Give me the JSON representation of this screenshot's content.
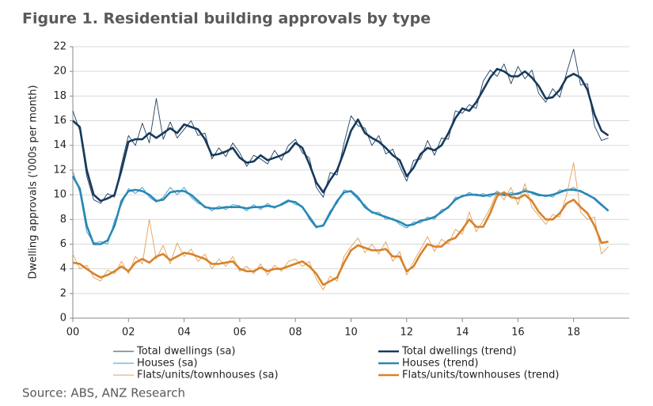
{
  "chart_data": {
    "type": "line",
    "title": "Figure 1. Residential building approvals by type",
    "y_label": "Dwelling approvals ('000s per month)",
    "source": "Source: ABS, ANZ Research",
    "x": [
      2000,
      2000.25,
      2000.5,
      2000.75,
      2001,
      2001.25,
      2001.5,
      2001.75,
      2002,
      2002.25,
      2002.5,
      2002.75,
      2003,
      2003.25,
      2003.5,
      2003.75,
      2004,
      2004.25,
      2004.5,
      2004.75,
      2005,
      2005.25,
      2005.5,
      2005.75,
      2006,
      2006.25,
      2006.5,
      2006.75,
      2007,
      2007.25,
      2007.5,
      2007.75,
      2008,
      2008.25,
      2008.5,
      2008.75,
      2009,
      2009.25,
      2009.5,
      2009.75,
      2010,
      2010.25,
      2010.5,
      2010.75,
      2011,
      2011.25,
      2011.5,
      2011.75,
      2012,
      2012.25,
      2012.5,
      2012.75,
      2013,
      2013.25,
      2013.5,
      2013.75,
      2014,
      2014.25,
      2014.5,
      2014.75,
      2015,
      2015.25,
      2015.5,
      2015.75,
      2016,
      2016.25,
      2016.5,
      2016.75,
      2017,
      2017.25,
      2017.5,
      2017.75,
      2018,
      2018.25,
      2018.5,
      2018.75,
      2019,
      2019.25
    ],
    "xlim": [
      2000,
      2020
    ],
    "xticks": [
      {
        "value": 2000,
        "label": "00"
      },
      {
        "value": 2002,
        "label": "02"
      },
      {
        "value": 2004,
        "label": "04"
      },
      {
        "value": 2006,
        "label": "06"
      },
      {
        "value": 2008,
        "label": "08"
      },
      {
        "value": 2010,
        "label": "10"
      },
      {
        "value": 2012,
        "label": "12"
      },
      {
        "value": 2014,
        "label": "14"
      },
      {
        "value": 2016,
        "label": "16"
      },
      {
        "value": 2018,
        "label": "18"
      }
    ],
    "ylim": [
      0,
      22
    ],
    "yticks": [
      0,
      2,
      4,
      6,
      8,
      10,
      12,
      14,
      16,
      18,
      20,
      22
    ],
    "grid": true,
    "series": [
      {
        "name": "Total dwellings (sa)",
        "color": "#1f3f60",
        "values": [
          16.8,
          15.2,
          11.5,
          9.6,
          9.3,
          10.1,
          9.8,
          12.5,
          14.8,
          14.0,
          15.8,
          14.2,
          17.8,
          14.5,
          15.9,
          14.6,
          15.3,
          16.0,
          14.8,
          15.0,
          12.9,
          13.8,
          13.1,
          14.2,
          13.4,
          12.3,
          13.2,
          12.9,
          12.5,
          13.6,
          12.8,
          14.0,
          14.5,
          13.4,
          13.0,
          10.6,
          9.8,
          11.8,
          11.6,
          14.2,
          16.4,
          15.6,
          15.4,
          14.0,
          14.8,
          13.3,
          13.7,
          12.3,
          11.1,
          12.8,
          12.9,
          14.4,
          13.2,
          14.6,
          14.5,
          16.8,
          16.6,
          17.3,
          17.0,
          19.2,
          20.1,
          19.6,
          20.6,
          19.0,
          20.4,
          19.4,
          20.1,
          18.2,
          17.5,
          18.6,
          17.9,
          19.9,
          21.8,
          18.9,
          19.0,
          15.6,
          14.4,
          14.6
        ]
      },
      {
        "name": "Total dwellings (trend)",
        "color": "#163a5c",
        "values": [
          16.0,
          15.5,
          12.0,
          10.0,
          9.5,
          9.7,
          10.0,
          12.0,
          14.3,
          14.5,
          14.5,
          15.0,
          14.6,
          15.0,
          15.4,
          15.0,
          15.7,
          15.5,
          15.3,
          14.5,
          13.2,
          13.3,
          13.5,
          13.8,
          13.0,
          12.6,
          12.7,
          13.2,
          12.8,
          13.0,
          13.2,
          13.5,
          14.2,
          13.8,
          12.5,
          11.0,
          10.2,
          11.2,
          12.0,
          13.5,
          15.2,
          16.1,
          15.0,
          14.6,
          14.3,
          13.8,
          13.2,
          12.8,
          11.5,
          12.2,
          13.3,
          13.8,
          13.6,
          14.0,
          15.0,
          16.2,
          17.0,
          16.8,
          17.5,
          18.5,
          19.5,
          20.2,
          20.0,
          19.6,
          19.6,
          20.0,
          19.5,
          18.8,
          17.8,
          17.9,
          18.5,
          19.5,
          19.8,
          19.5,
          18.5,
          16.5,
          15.2,
          14.8
        ]
      },
      {
        "name": "Houses (sa)",
        "color": "#3a9bc6",
        "values": [
          11.9,
          10.2,
          7.0,
          6.1,
          6.2,
          6.0,
          7.9,
          9.2,
          10.5,
          10.1,
          10.6,
          9.8,
          9.4,
          9.8,
          10.6,
          10.0,
          10.6,
          9.8,
          9.3,
          9.1,
          8.7,
          9.1,
          8.8,
          9.2,
          9.1,
          8.7,
          9.2,
          8.8,
          9.3,
          8.9,
          9.3,
          9.6,
          9.2,
          9.1,
          8.0,
          7.3,
          7.6,
          8.7,
          9.3,
          10.4,
          10.2,
          9.6,
          9.2,
          8.5,
          8.6,
          8.0,
          8.1,
          7.6,
          7.3,
          7.8,
          7.7,
          8.2,
          8.0,
          8.8,
          8.9,
          9.8,
          9.8,
          10.2,
          9.9,
          10.1,
          9.8,
          10.3,
          9.9,
          10.2,
          10.0,
          10.5,
          10.1,
          9.9,
          10.0,
          9.8,
          10.4,
          10.3,
          10.6,
          10.2,
          10.1,
          9.6,
          9.1,
          8.7
        ]
      },
      {
        "name": "Houses (trend)",
        "color": "#2a88b5",
        "values": [
          11.5,
          10.5,
          7.5,
          6.0,
          6.0,
          6.3,
          7.5,
          9.5,
          10.3,
          10.4,
          10.3,
          10.0,
          9.5,
          9.6,
          10.2,
          10.3,
          10.3,
          10.0,
          9.5,
          9.0,
          8.9,
          8.9,
          9.0,
          9.0,
          9.0,
          8.9,
          9.0,
          9.0,
          9.1,
          9.0,
          9.2,
          9.5,
          9.4,
          9.0,
          8.2,
          7.4,
          7.5,
          8.5,
          9.5,
          10.2,
          10.3,
          9.8,
          9.0,
          8.6,
          8.4,
          8.2,
          8.0,
          7.8,
          7.5,
          7.6,
          7.9,
          8.0,
          8.2,
          8.6,
          9.0,
          9.6,
          9.9,
          10.0,
          10.0,
          9.9,
          10.0,
          10.1,
          10.0,
          10.0,
          10.1,
          10.3,
          10.2,
          10.0,
          9.9,
          10.0,
          10.2,
          10.4,
          10.4,
          10.3,
          10.0,
          9.7,
          9.2,
          8.7
        ]
      },
      {
        "name": "Flats/units/townhouses (sa)",
        "color": "#e2a05a",
        "values": [
          5.2,
          4.0,
          4.3,
          3.3,
          3.0,
          3.9,
          3.6,
          4.6,
          3.6,
          5.0,
          4.4,
          8.0,
          4.8,
          5.9,
          4.4,
          6.1,
          5.0,
          5.6,
          4.6,
          5.2,
          4.0,
          4.8,
          4.2,
          5.0,
          3.8,
          4.2,
          3.6,
          4.4,
          3.5,
          4.3,
          3.8,
          4.6,
          4.8,
          4.2,
          4.6,
          3.2,
          2.3,
          3.4,
          3.0,
          5.0,
          5.8,
          6.5,
          5.3,
          6.0,
          5.2,
          6.2,
          4.6,
          5.4,
          3.5,
          4.6,
          5.6,
          6.6,
          5.4,
          6.4,
          6.0,
          7.2,
          6.8,
          8.6,
          7.0,
          7.9,
          8.9,
          10.3,
          9.6,
          10.6,
          9.2,
          10.9,
          9.0,
          8.3,
          7.6,
          8.4,
          8.2,
          10.0,
          12.6,
          8.6,
          8.0,
          8.2,
          5.2,
          5.8
        ]
      },
      {
        "name": "Flats/units/townhouses (trend)",
        "color": "#d8822a",
        "values": [
          4.5,
          4.4,
          4.0,
          3.6,
          3.3,
          3.5,
          3.8,
          4.2,
          3.8,
          4.5,
          4.8,
          4.5,
          5.0,
          5.2,
          4.7,
          5.0,
          5.3,
          5.2,
          5.0,
          4.8,
          4.4,
          4.4,
          4.5,
          4.6,
          4.0,
          3.8,
          3.8,
          4.1,
          3.8,
          4.0,
          4.0,
          4.2,
          4.4,
          4.6,
          4.2,
          3.6,
          2.7,
          3.0,
          3.3,
          4.5,
          5.5,
          5.9,
          5.7,
          5.5,
          5.5,
          5.6,
          5.0,
          5.0,
          3.8,
          4.2,
          5.2,
          6.0,
          5.8,
          5.8,
          6.3,
          6.5,
          7.2,
          8.0,
          7.4,
          7.4,
          8.5,
          9.9,
          10.2,
          9.8,
          9.7,
          10.0,
          9.5,
          8.6,
          8.0,
          8.0,
          8.5,
          9.3,
          9.6,
          9.0,
          8.5,
          7.5,
          6.1,
          6.2
        ]
      }
    ]
  }
}
